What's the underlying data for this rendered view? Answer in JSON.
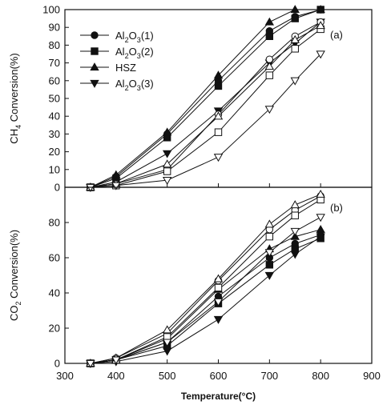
{
  "chart_data": [
    {
      "type": "line",
      "panel_label": "(a)",
      "ylabel": "CH4 Conversion(%)",
      "ylabel_main": "CH",
      "ylabel_sub": "4",
      "ylabel_rest": " Conversion(%)",
      "xlim": [
        300,
        900
      ],
      "ylim": [
        0,
        100
      ],
      "yticks": [
        0,
        10,
        20,
        30,
        40,
        50,
        60,
        70,
        80,
        90,
        100
      ],
      "ytick_labels": [
        "0",
        "10",
        "20",
        "30",
        "40",
        "50",
        "60",
        "70",
        "80",
        "90",
        "100"
      ],
      "legend": {
        "placement": "top-left",
        "entries": [
          {
            "parts": [
              [
                "Al",
                ""
              ],
              [
                "2",
                "sub"
              ],
              [
                "O",
                ""
              ],
              [
                "3",
                "sub"
              ],
              [
                "(1)",
                ""
              ]
            ],
            "marker": "circle"
          },
          {
            "parts": [
              [
                "Al",
                ""
              ],
              [
                "2",
                "sub"
              ],
              [
                "O",
                ""
              ],
              [
                "3",
                "sub"
              ],
              [
                "(2)",
                ""
              ]
            ],
            "marker": "square"
          },
          {
            "parts": [
              [
                "HSZ",
                ""
              ]
            ],
            "marker": "triangle-up"
          },
          {
            "parts": [
              [
                "Al",
                ""
              ],
              [
                "2",
                "sub"
              ],
              [
                "O",
                ""
              ],
              [
                "3",
                "sub"
              ],
              [
                "(3)",
                ""
              ]
            ],
            "marker": "triangle-down"
          }
        ]
      },
      "series": [
        {
          "name": "Al2O3(1)",
          "marker": "circle",
          "fill": "solid",
          "x": [
            350,
            400,
            500,
            600,
            700,
            750,
            800
          ],
          "y": [
            0,
            6,
            30,
            60,
            88,
            96,
            100
          ]
        },
        {
          "name": "Al2O3(2)",
          "marker": "square",
          "fill": "solid",
          "x": [
            350,
            400,
            500,
            600,
            700,
            750,
            800
          ],
          "y": [
            0,
            5,
            28,
            57,
            85,
            95,
            100
          ]
        },
        {
          "name": "HSZ",
          "marker": "triangle-up",
          "fill": "solid",
          "x": [
            350,
            400,
            500,
            600,
            700,
            750,
            800
          ],
          "y": [
            0,
            7,
            31,
            63,
            93,
            100,
            100
          ]
        },
        {
          "name": "Al2O3(3)",
          "marker": "triangle-down",
          "fill": "solid",
          "x": [
            350,
            400,
            500,
            600,
            700,
            750,
            800
          ],
          "y": [
            0,
            3,
            19,
            43,
            70,
            81,
            93
          ]
        },
        {
          "marker": "circle",
          "fill": "open",
          "x": [
            350,
            400,
            500,
            600,
            700,
            750,
            800
          ],
          "y": [
            0,
            2,
            10,
            41,
            72,
            85,
            93
          ]
        },
        {
          "marker": "square",
          "fill": "open",
          "x": [
            350,
            400,
            500,
            600,
            700,
            750,
            800
          ],
          "y": [
            0,
            1,
            9,
            31,
            63,
            78,
            89
          ]
        },
        {
          "marker": "triangle-up",
          "fill": "open",
          "x": [
            350,
            400,
            500,
            600,
            700,
            750,
            800
          ],
          "y": [
            0,
            2,
            13,
            40,
            68,
            83,
            91
          ]
        },
        {
          "marker": "triangle-down",
          "fill": "open",
          "x": [
            350,
            400,
            500,
            600,
            700,
            750,
            800
          ],
          "y": [
            0,
            1,
            4,
            17,
            44,
            60,
            75
          ]
        }
      ]
    },
    {
      "type": "line",
      "panel_label": "(b)",
      "ylabel": "CO2 Conversion(%)",
      "ylabel_main": "CO",
      "ylabel_sub": "2",
      "ylabel_rest": " Conversion(%)",
      "xlabel": "Temperature(°C)",
      "xlim": [
        300,
        900
      ],
      "ylim": [
        0,
        100
      ],
      "xticks": [
        300,
        400,
        500,
        600,
        700,
        800,
        900
      ],
      "xtick_labels": [
        "300",
        "400",
        "500",
        "600",
        "700",
        "800",
        "900"
      ],
      "yticks": [
        0,
        20,
        40,
        60,
        80,
        100
      ],
      "ytick_labels": [
        "0",
        "20",
        "40",
        "60",
        "80",
        "100"
      ],
      "series": [
        {
          "name": "Al2O3(1)",
          "marker": "circle",
          "fill": "solid",
          "x": [
            350,
            400,
            500,
            600,
            700,
            750,
            800
          ],
          "y": [
            0,
            2,
            12,
            38,
            60,
            68,
            73
          ]
        },
        {
          "name": "Al2O3(2)",
          "marker": "square",
          "fill": "solid",
          "x": [
            350,
            400,
            500,
            600,
            700,
            750,
            800
          ],
          "y": [
            0,
            2,
            10,
            34,
            56,
            65,
            71
          ]
        },
        {
          "name": "HSZ",
          "marker": "triangle-up",
          "fill": "solid",
          "x": [
            350,
            400,
            500,
            600,
            700,
            750,
            800
          ],
          "y": [
            0,
            2,
            14,
            42,
            65,
            72,
            76
          ]
        },
        {
          "name": "Al2O3(3)",
          "marker": "triangle-down",
          "fill": "solid",
          "x": [
            350,
            400,
            500,
            600,
            700,
            750,
            800
          ],
          "y": [
            0,
            1,
            7,
            25,
            50,
            62,
            72
          ]
        },
        {
          "marker": "circle",
          "fill": "open",
          "x": [
            350,
            400,
            500,
            600,
            700,
            750,
            800
          ],
          "y": [
            0,
            3,
            17,
            47,
            76,
            87,
            95
          ]
        },
        {
          "marker": "square",
          "fill": "open",
          "x": [
            350,
            400,
            500,
            600,
            700,
            750,
            800
          ],
          "y": [
            0,
            2,
            15,
            43,
            72,
            84,
            93
          ]
        },
        {
          "marker": "triangle-up",
          "fill": "open",
          "x": [
            350,
            400,
            500,
            600,
            700,
            750,
            800
          ],
          "y": [
            0,
            3,
            19,
            48,
            79,
            90,
            96
          ]
        },
        {
          "marker": "triangle-down",
          "fill": "open",
          "x": [
            350,
            400,
            500,
            600,
            700,
            750,
            800
          ],
          "y": [
            0,
            2,
            12,
            35,
            63,
            75,
            83
          ]
        }
      ]
    }
  ]
}
